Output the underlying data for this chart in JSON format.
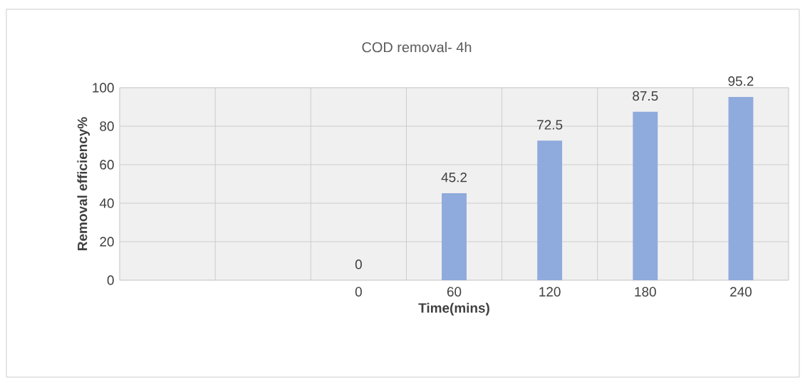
{
  "chart_data": {
    "type": "bar",
    "title": "COD removal- 4h",
    "xlabel": "Time(mins)",
    "ylabel": "Removal efficiency%",
    "categories": [
      null,
      null,
      "0",
      "60",
      "120",
      "180",
      "240"
    ],
    "values": [
      null,
      null,
      0,
      45.2,
      72.5,
      87.5,
      95.2
    ],
    "color": "#8faadc",
    "ylim": [
      0,
      100
    ],
    "yticks": [
      0,
      20,
      40,
      60,
      80,
      100
    ],
    "grid": true,
    "data_labels": true
  }
}
